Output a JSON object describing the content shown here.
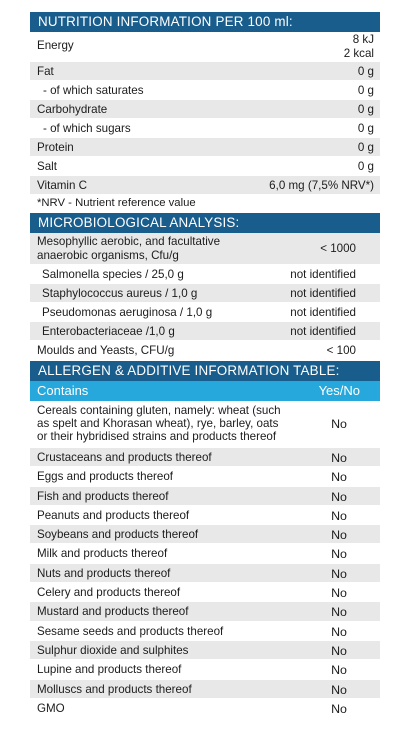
{
  "nutrition": {
    "title": "NUTRITION INFORMATION PER 100 ml:",
    "rows": [
      {
        "label": "Energy",
        "value": "8 kJ",
        "value2": "2 kcal"
      },
      {
        "label": "Fat",
        "value": "0 g"
      },
      {
        "label": "- of which saturates",
        "value": "0 g"
      },
      {
        "label": "Carbohydrate",
        "value": "0 g"
      },
      {
        "label": "- of which sugars",
        "value": "0 g"
      },
      {
        "label": "Protein",
        "value": "0 g"
      },
      {
        "label": "Salt",
        "value": "0 g"
      },
      {
        "label": "Vitamin C",
        "value": "6,0 mg (7,5% NRV*)"
      }
    ],
    "note": "*NRV - Nutrient reference value"
  },
  "micro": {
    "title": "MICROBIOLOGICAL ANALYSIS:",
    "rows": [
      {
        "label1": "Mesophyllic aerobic, and facultative",
        "label2": "anaerobic organisms, Cfu/g",
        "value": "< 1000"
      },
      {
        "label": "Salmonella species / 25,0 g",
        "value": "not identified"
      },
      {
        "label": "Staphylococcus aureus / 1,0 g",
        "value": "not identified"
      },
      {
        "label": "Pseudomonas aeruginosa / 1,0 g",
        "value": "not identified"
      },
      {
        "label": "Enterobacteriaceae /1,0 g",
        "value": "not identified"
      },
      {
        "label": "Moulds and Yeasts, CFU/g",
        "value": "< 100"
      }
    ]
  },
  "allergen": {
    "title": "ALLERGEN & ADDITIVE INFORMATION TABLE:",
    "col_contains": "Contains",
    "col_yesno": "Yes/No",
    "first": {
      "line1": "Cereals containing  gluten, namely: wheat (such",
      "line2": "as spelt and Khorasan wheat), rye,  barley,  oats",
      "line3": "or their hybridised strains and products thereof",
      "value": "No"
    },
    "rows": [
      {
        "label": "Crustaceans and products thereof",
        "value": "No"
      },
      {
        "label": "Eggs and products thereof",
        "value": "No"
      },
      {
        "label": "Fish and products thereof",
        "value": "No"
      },
      {
        "label": "Peanuts and products thereof",
        "value": "No"
      },
      {
        "label": "Soybeans and products thereof",
        "value": "No"
      },
      {
        "label": "Milk and products thereof",
        "value": "No"
      },
      {
        "label": "Nuts and products thereof",
        "value": "No"
      },
      {
        "label": "Celery and products thereof",
        "value": "No"
      },
      {
        "label": "Mustard and products thereof",
        "value": "No"
      },
      {
        "label": "Sesame seeds and products thereof",
        "value": "No"
      },
      {
        "label": "Sulphur dioxide and sulphites",
        "value": "No"
      },
      {
        "label": "Lupine and products thereof",
        "value": "No"
      },
      {
        "label": "Molluscs and products thereof",
        "value": "No"
      },
      {
        "label": "GMO",
        "value": "No"
      }
    ]
  }
}
